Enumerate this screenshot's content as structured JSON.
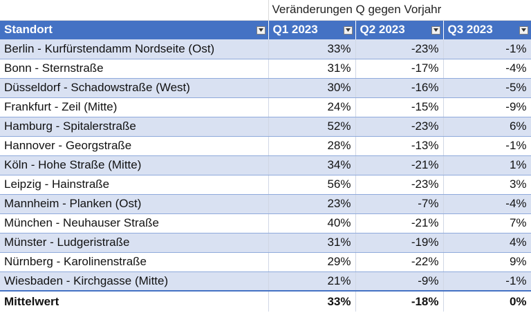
{
  "caption": "Veränderungen Q gegen Vorjahr",
  "headers": [
    "Standort",
    "Q1 2023",
    "Q2 2023",
    "Q3 2023"
  ],
  "icons": {
    "filter": "filter-dropdown-icon"
  },
  "colors": {
    "header_bg": "#4472c4",
    "band_bg": "#d9e1f2"
  },
  "rows": [
    [
      "Berlin - Kurfürstendamm Nordseite (Ost)",
      "33%",
      "-23%",
      "-1%"
    ],
    [
      "Bonn - Sternstraße",
      "31%",
      "-17%",
      "-4%"
    ],
    [
      "Düsseldorf - Schadowstraße (West)",
      "30%",
      "-16%",
      "-5%"
    ],
    [
      "Frankfurt - Zeil (Mitte)",
      "24%",
      "-15%",
      "-9%"
    ],
    [
      "Hamburg - Spitalerstraße",
      "52%",
      "-23%",
      "6%"
    ],
    [
      "Hannover - Georgstraße",
      "28%",
      "-13%",
      "-1%"
    ],
    [
      "Köln - Hohe Straße (Mitte)",
      "34%",
      "-21%",
      "1%"
    ],
    [
      "Leipzig - Hainstraße",
      "56%",
      "-23%",
      "3%"
    ],
    [
      "Mannheim - Planken (Ost)",
      "23%",
      "-7%",
      "-4%"
    ],
    [
      "München - Neuhauser Straße",
      "40%",
      "-21%",
      "7%"
    ],
    [
      "Münster - Ludgeristraße",
      "31%",
      "-19%",
      "4%"
    ],
    [
      "Nürnberg - Karolinenstraße",
      "29%",
      "-22%",
      "9%"
    ],
    [
      "Wiesbaden - Kirchgasse (Mitte)",
      "21%",
      "-9%",
      "-1%"
    ]
  ],
  "total": [
    "Mittelwert",
    "33%",
    "-18%",
    "0%"
  ]
}
